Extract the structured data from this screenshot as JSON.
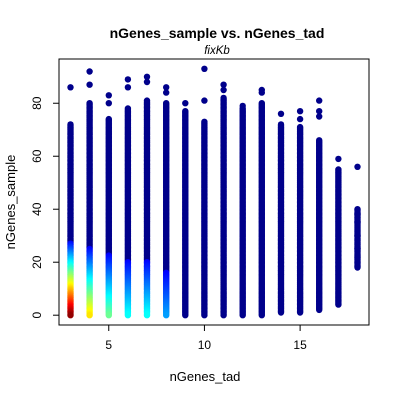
{
  "chart_data": {
    "type": "scatter",
    "title": "nGenes_sample vs. nGenes_tad",
    "subtitle": "fixKb",
    "xlabel": "nGenes_tad",
    "ylabel": "nGenes_sample",
    "xlim": [
      2.4,
      18.6
    ],
    "ylim": [
      -3.7,
      96.7
    ],
    "x_ticks": [
      5,
      10,
      15
    ],
    "y_ticks": [
      0,
      20,
      40,
      60,
      80
    ],
    "grid": false,
    "legend": "none",
    "colors": {
      "density_scale": [
        "#00008F",
        "#0000FF",
        "#0080FF",
        "#00FFFF",
        "#80FF80",
        "#FFFF00",
        "#FF8000",
        "#FF0000",
        "#800000"
      ],
      "point_default": "#00008B"
    },
    "columns": [
      {
        "x": 3,
        "ymin": 0,
        "ymax": 72,
        "outliers": [
          86
        ],
        "dense": true
      },
      {
        "x": 4,
        "ymin": 0,
        "ymax": 80,
        "outliers": [
          92,
          87
        ],
        "dense": true
      },
      {
        "x": 5,
        "ymin": 0,
        "ymax": 74,
        "outliers": [
          83,
          80
        ],
        "dense": true
      },
      {
        "x": 6,
        "ymin": 0,
        "ymax": 78,
        "outliers": [
          89,
          86
        ],
        "dense": true
      },
      {
        "x": 7,
        "ymin": 0,
        "ymax": 81,
        "outliers": [
          90,
          88
        ],
        "dense": true
      },
      {
        "x": 8,
        "ymin": 0,
        "ymax": 80,
        "outliers": [
          86,
          84
        ],
        "dense": true
      },
      {
        "x": 9,
        "ymin": 0,
        "ymax": 77,
        "outliers": [
          80
        ],
        "dense": false
      },
      {
        "x": 10,
        "ymin": 0,
        "ymax": 73,
        "outliers": [
          93,
          81
        ],
        "dense": false
      },
      {
        "x": 11,
        "ymin": 0,
        "ymax": 82,
        "outliers": [
          87,
          85
        ],
        "dense": false
      },
      {
        "x": 12,
        "ymin": 0,
        "ymax": 78,
        "outliers": [
          79
        ],
        "dense": false
      },
      {
        "x": 13,
        "ymin": 0,
        "ymax": 80,
        "outliers": [
          85,
          84
        ],
        "dense": false
      },
      {
        "x": 14,
        "ymin": 1,
        "ymax": 72,
        "outliers": [
          76
        ],
        "dense": false
      },
      {
        "x": 15,
        "ymin": 1,
        "ymax": 71,
        "outliers": [
          77,
          74
        ],
        "dense": false
      },
      {
        "x": 16,
        "ymin": 2,
        "ymax": 66,
        "outliers": [
          81,
          77,
          75
        ],
        "dense": false
      },
      {
        "x": 17,
        "ymin": 4,
        "ymax": 55,
        "outliers": [
          59
        ],
        "dense": false
      },
      {
        "x": 18,
        "ymin": 18,
        "ymax": 40,
        "outliers": [
          56,
          38,
          35,
          30,
          25,
          22
        ],
        "dense": false
      }
    ]
  }
}
